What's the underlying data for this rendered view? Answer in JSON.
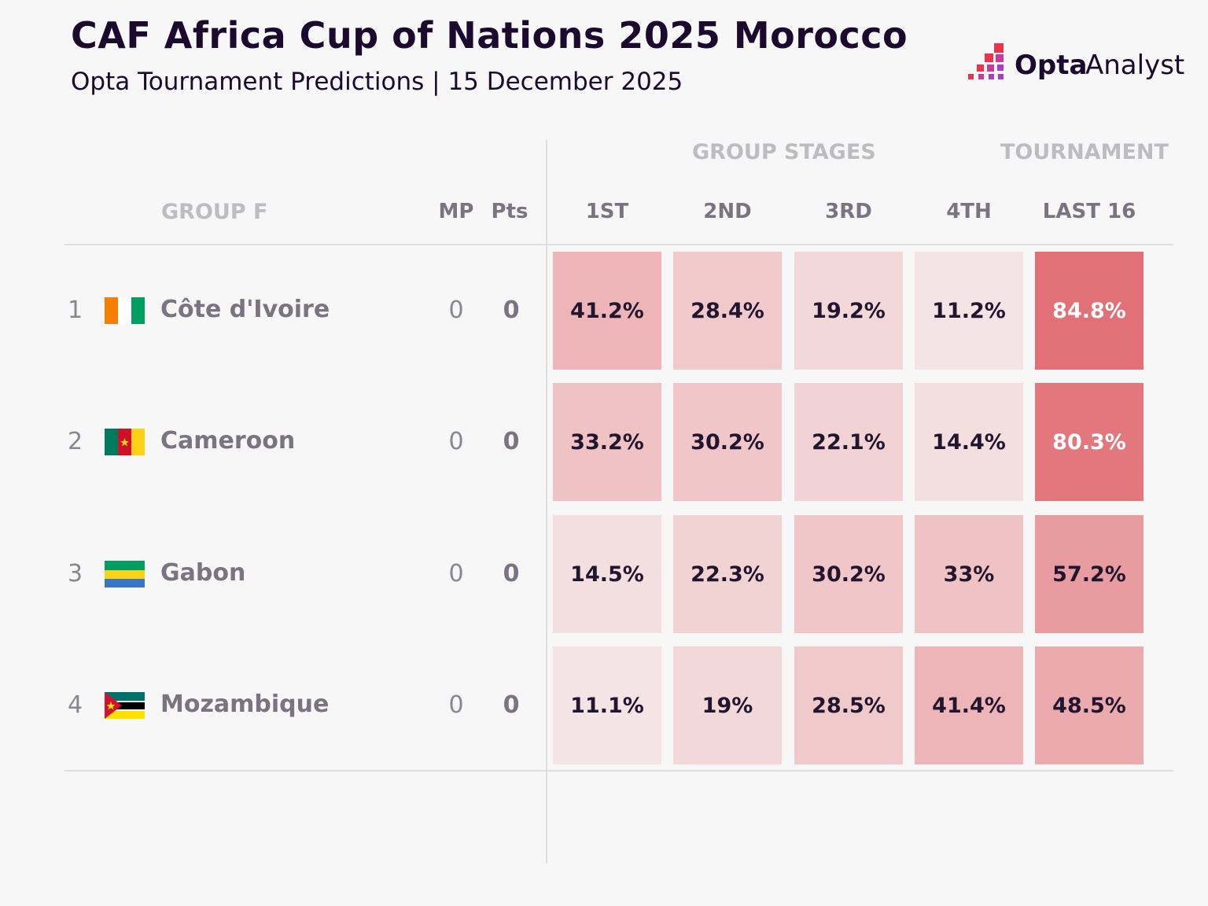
{
  "header": {
    "title": "CAF Africa Cup of Nations 2025 Morocco",
    "subtitle": "Opta Tournament Predictions | 15 December 2025",
    "logo_text": "Opta Analyst"
  },
  "chart_data": {
    "type": "heatmap",
    "group_label": "GROUP F",
    "section_headers": [
      "GROUP STAGES",
      "TOURNAMENT"
    ],
    "stat_headers": [
      "MP",
      "Pts"
    ],
    "columns": [
      "1ST",
      "2ND",
      "3RD",
      "4TH",
      "LAST 16"
    ],
    "rows": [
      {
        "rank": "1",
        "team": "Côte d'Ivoire",
        "flag": "civ",
        "mp": "0",
        "pts": "0",
        "values": [
          41.2,
          28.4,
          19.2,
          11.2,
          84.8
        ],
        "labels": [
          "41.2%",
          "28.4%",
          "19.2%",
          "11.2%",
          "84.8%"
        ]
      },
      {
        "rank": "2",
        "team": "Cameroon",
        "flag": "cmr",
        "mp": "0",
        "pts": "0",
        "values": [
          33.2,
          30.2,
          22.1,
          14.4,
          80.3
        ],
        "labels": [
          "33.2%",
          "30.2%",
          "22.1%",
          "14.4%",
          "80.3%"
        ]
      },
      {
        "rank": "3",
        "team": "Gabon",
        "flag": "gab",
        "mp": "0",
        "pts": "0",
        "values": [
          14.5,
          22.3,
          30.2,
          33,
          57.2
        ],
        "labels": [
          "14.5%",
          "22.3%",
          "30.2%",
          "33%",
          "57.2%"
        ]
      },
      {
        "rank": "4",
        "team": "Mozambique",
        "flag": "moz",
        "mp": "0",
        "pts": "0",
        "values": [
          11.1,
          19,
          28.5,
          41.4,
          48.5
        ],
        "labels": [
          "11.1%",
          "19%",
          "28.5%",
          "41.4%",
          "48.5%"
        ]
      }
    ],
    "color_scale": {
      "low": "#f5e6e7",
      "high": "#e06c71"
    }
  }
}
